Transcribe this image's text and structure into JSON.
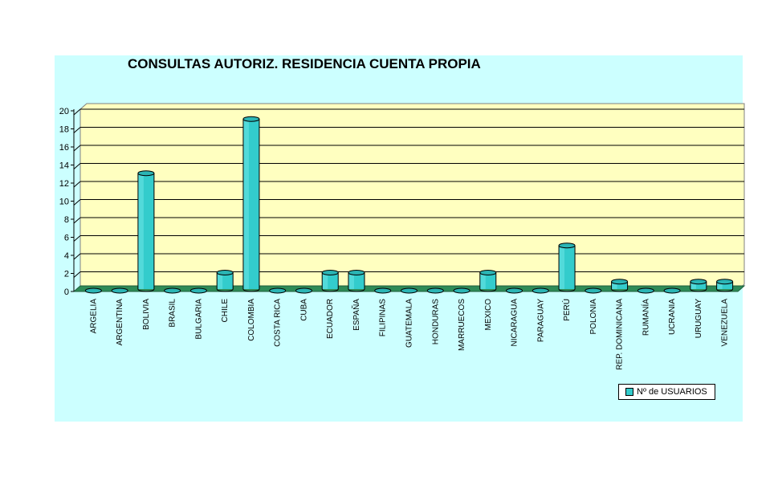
{
  "chart_data": {
    "type": "bar",
    "title": "CONSULTAS AUTORIZ. RESIDENCIA CUENTA PROPIA",
    "categories": [
      "ARGELIA",
      "ARGENTINA",
      "BOLIVIA",
      "BRASIL",
      "BULGARIA",
      "CHILE",
      "COLOMBIA",
      "COSTA RICA",
      "CUBA",
      "ECUADOR",
      "ESPAÑA",
      "FILIPINAS",
      "GUATEMALA",
      "HONDURAS",
      "MARRUECOS",
      "MEXICO",
      "NICARAGUA",
      "PARAGUAY",
      "PERÚ",
      "POLONIA",
      "REP. DOMINICANA",
      "RUMANÍA",
      "UCRANIA",
      "URUGUAY",
      "VENEZUELA"
    ],
    "series": [
      {
        "name": "Nº de USUARIOS",
        "values": [
          0,
          0,
          13,
          0,
          0,
          2,
          19,
          0,
          0,
          2,
          2,
          0,
          0,
          0,
          0,
          2,
          0,
          0,
          5,
          0,
          1,
          0,
          0,
          1,
          1
        ]
      }
    ],
    "yticks": [
      "0",
      "2",
      "4",
      "6",
      "8",
      "10",
      "12",
      "14",
      "16",
      "18",
      "20"
    ],
    "ylim": [
      0,
      20
    ],
    "xlabel": "",
    "ylabel": "",
    "grid": true,
    "legend_position": "bottom-right",
    "style": "3d-cylinder",
    "colors": {
      "bar": "#33cccc",
      "plot_bg": "#ffffc0",
      "floor": "#2e8b57",
      "chart_bg": "#ccffff"
    }
  }
}
